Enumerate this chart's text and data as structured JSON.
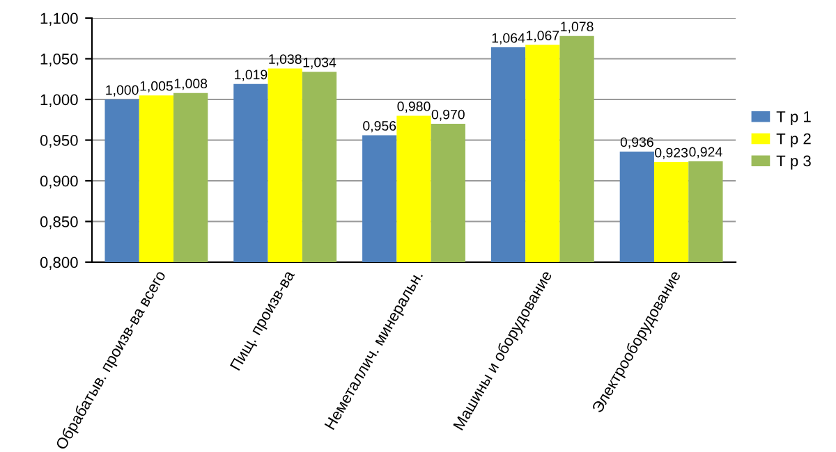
{
  "chart_data": {
    "type": "bar",
    "categories": [
      "Обрабатыв. произв-ва всего",
      "Пищ. произв-ва",
      "Неметаллич. минеральн.",
      "Машины и оборудование",
      "Электрооборудование"
    ],
    "series": [
      {
        "name": "Т р 1",
        "color": "#4f81bd",
        "values": [
          1.0,
          1.019,
          0.956,
          1.064,
          0.936
        ],
        "value_labels": [
          "1,000",
          "1,019",
          "0,956",
          "1,064",
          "0,936"
        ]
      },
      {
        "name": "Т р 2",
        "color": "#ffff00",
        "values": [
          1.005,
          1.038,
          0.98,
          1.067,
          0.923
        ],
        "value_labels": [
          "1,005",
          "1,038",
          "0,980",
          "1,067",
          "0,923"
        ]
      },
      {
        "name": "Т р 3",
        "color": "#9bbb59",
        "values": [
          1.008,
          1.034,
          0.97,
          1.078,
          0.924
        ],
        "value_labels": [
          "1,008",
          "1,034",
          "0,970",
          "1,078",
          "0,924"
        ]
      }
    ],
    "ylim": [
      0.8,
      1.1
    ],
    "yticks": [
      {
        "value": 0.8,
        "label": "0,800"
      },
      {
        "value": 0.85,
        "label": "0,850"
      },
      {
        "value": 0.9,
        "label": "0,900"
      },
      {
        "value": 0.95,
        "label": "0,950"
      },
      {
        "value": 1.0,
        "label": "1,000"
      },
      {
        "value": 1.05,
        "label": "1,050"
      },
      {
        "value": 1.1,
        "label": "1,100"
      }
    ],
    "grid": "y",
    "legend": "right"
  }
}
